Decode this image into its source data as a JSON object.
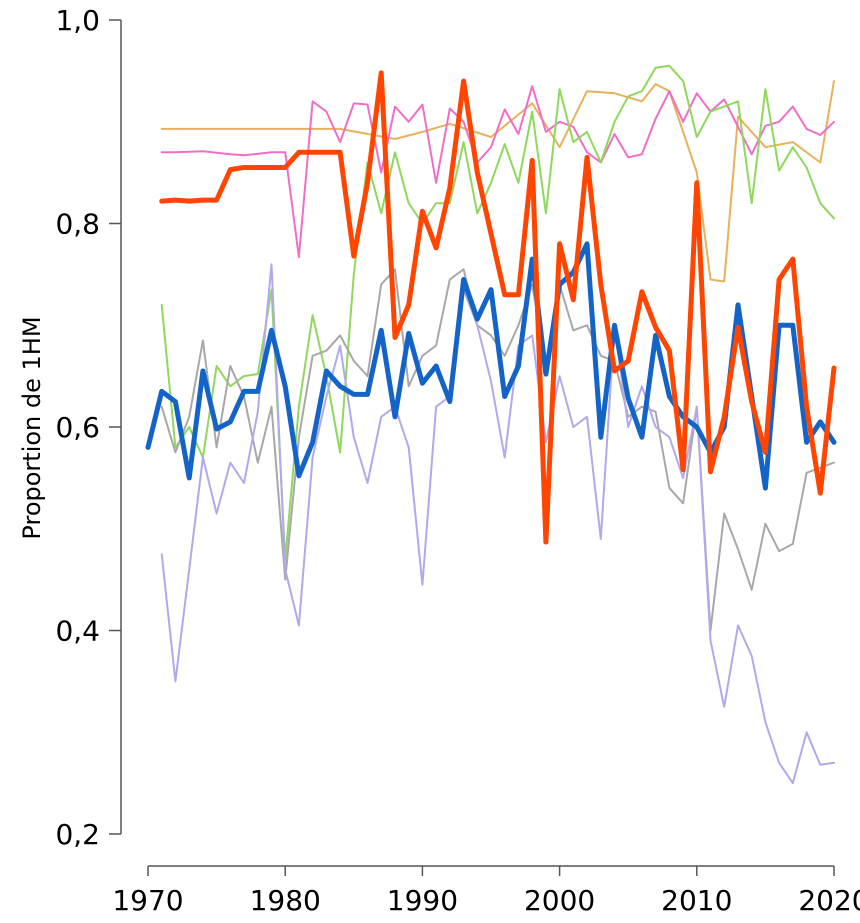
{
  "chart_data": {
    "type": "line",
    "title": "",
    "xlabel": "",
    "ylabel": "Proportion de 1HM",
    "xlim": [
      1970,
      2020
    ],
    "ylim": [
      0.2,
      1.0
    ],
    "x_ticks": [
      "1970",
      "1980",
      "1990",
      "2000",
      "2010",
      "2020"
    ],
    "y_ticks": [
      "0,2",
      "0,4",
      "0,6",
      "0,8",
      "1,0"
    ],
    "grid": false,
    "legend": "none",
    "series": [
      {
        "color": "#E8B15C",
        "width": 2,
        "x": [
          1971,
          1984,
          1988,
          1990,
          1992,
          1995,
          1998,
          2000,
          2002,
          2004,
          2006,
          2007,
          2008,
          2010,
          2011,
          2012,
          2013,
          2015,
          2017,
          2019,
          2020
        ],
        "y": [
          0.893,
          0.893,
          0.883,
          0.89,
          0.898,
          0.885,
          0.918,
          0.875,
          0.93,
          0.928,
          0.92,
          0.937,
          0.93,
          0.85,
          0.745,
          0.743,
          0.905,
          0.875,
          0.88,
          0.86,
          0.94
        ]
      },
      {
        "color": "#F06EC8",
        "width": 2,
        "x": [
          1971,
          1972,
          1974,
          1976,
          1977,
          1979,
          1980,
          1981,
          1982,
          1983,
          1984,
          1985,
          1986,
          1987,
          1988,
          1989,
          1990,
          1991,
          1992,
          1993,
          1994,
          1995,
          1996,
          1997,
          1998,
          1999,
          2000,
          2001,
          2002,
          2003,
          2004,
          2005,
          2006,
          2007,
          2008,
          2009,
          2010,
          2011,
          2012,
          2013,
          2014,
          2015,
          2016,
          2017,
          2018,
          2019,
          2020
        ],
        "y": [
          0.87,
          0.87,
          0.871,
          0.868,
          0.867,
          0.87,
          0.87,
          0.767,
          0.92,
          0.91,
          0.88,
          0.918,
          0.917,
          0.85,
          0.915,
          0.9,
          0.917,
          0.84,
          0.913,
          0.9,
          0.86,
          0.875,
          0.912,
          0.888,
          0.935,
          0.89,
          0.9,
          0.895,
          0.87,
          0.86,
          0.888,
          0.865,
          0.868,
          0.903,
          0.93,
          0.9,
          0.928,
          0.91,
          0.922,
          0.895,
          0.868,
          0.896,
          0.9,
          0.915,
          0.893,
          0.887,
          0.9
        ]
      },
      {
        "color": "#8ED85C",
        "width": 2,
        "x": [
          1971,
          1972,
          1973,
          1974,
          1975,
          1976,
          1977,
          1978,
          1979,
          1980,
          1981,
          1982,
          1983,
          1984,
          1985,
          1986,
          1987,
          1988,
          1989,
          1990,
          1991,
          1992,
          1993,
          1994,
          1995,
          1996,
          1997,
          1998,
          1999,
          2000,
          2001,
          2002,
          2003,
          2004,
          2005,
          2006,
          2007,
          2008,
          2009,
          2010,
          2011,
          2012,
          2013,
          2014,
          2015,
          2016,
          2017,
          2018,
          2019,
          2020
        ],
        "y": [
          0.72,
          0.58,
          0.6,
          0.57,
          0.66,
          0.64,
          0.65,
          0.652,
          0.735,
          0.47,
          0.62,
          0.71,
          0.65,
          0.575,
          0.75,
          0.86,
          0.81,
          0.87,
          0.82,
          0.8,
          0.82,
          0.82,
          0.88,
          0.81,
          0.84,
          0.878,
          0.84,
          0.91,
          0.81,
          0.932,
          0.88,
          0.89,
          0.86,
          0.9,
          0.925,
          0.93,
          0.953,
          0.955,
          0.94,
          0.885,
          0.91,
          0.915,
          0.92,
          0.82,
          0.932,
          0.852,
          0.875,
          0.855,
          0.82,
          0.805
        ]
      },
      {
        "color": "#A8A8A8",
        "width": 2,
        "x": [
          1971,
          1972,
          1973,
          1974,
          1975,
          1976,
          1977,
          1978,
          1979,
          1980,
          1981,
          1982,
          1983,
          1984,
          1985,
          1986,
          1987,
          1988,
          1989,
          1990,
          1991,
          1992,
          1993,
          1994,
          1995,
          1996,
          1997,
          1998,
          1999,
          2000,
          2001,
          2002,
          2003,
          2004,
          2005,
          2006,
          2007,
          2008,
          2009,
          2010,
          2011,
          2012,
          2013,
          2014,
          2015,
          2016,
          2017,
          2018,
          2019,
          2020
        ],
        "y": [
          0.62,
          0.575,
          0.61,
          0.685,
          0.58,
          0.66,
          0.63,
          0.565,
          0.62,
          0.45,
          0.59,
          0.67,
          0.675,
          0.69,
          0.665,
          0.65,
          0.74,
          0.755,
          0.64,
          0.67,
          0.68,
          0.745,
          0.755,
          0.7,
          0.69,
          0.67,
          0.7,
          0.74,
          0.66,
          0.74,
          0.695,
          0.7,
          0.67,
          0.665,
          0.61,
          0.62,
          0.615,
          0.54,
          0.525,
          0.62,
          0.4,
          0.515,
          0.48,
          0.44,
          0.505,
          0.478,
          0.485,
          0.555,
          0.56,
          0.565
        ]
      },
      {
        "color": "#B2A8EC",
        "width": 2,
        "x": [
          1971,
          1972,
          1973,
          1974,
          1975,
          1976,
          1977,
          1978,
          1979,
          1980,
          1981,
          1982,
          1983,
          1984,
          1985,
          1986,
          1987,
          1988,
          1989,
          1990,
          1991,
          1992,
          1993,
          1994,
          1995,
          1996,
          1997,
          1998,
          1999,
          2000,
          2001,
          2002,
          2003,
          2004,
          2005,
          2006,
          2007,
          2008,
          2009,
          2010,
          2011,
          2012,
          2013,
          2014,
          2015,
          2016,
          2017,
          2018,
          2019,
          2020
        ],
        "y": [
          0.475,
          0.35,
          0.46,
          0.57,
          0.515,
          0.565,
          0.545,
          0.615,
          0.76,
          0.46,
          0.405,
          0.57,
          0.63,
          0.68,
          0.59,
          0.545,
          0.61,
          0.62,
          0.58,
          0.445,
          0.62,
          0.63,
          0.735,
          0.7,
          0.645,
          0.57,
          0.68,
          0.69,
          0.585,
          0.65,
          0.6,
          0.61,
          0.49,
          0.7,
          0.6,
          0.64,
          0.6,
          0.59,
          0.55,
          0.62,
          0.39,
          0.325,
          0.405,
          0.375,
          0.31,
          0.27,
          0.25,
          0.3,
          0.268,
          0.27
        ]
      },
      {
        "color": "#1464C8",
        "width": 5,
        "x": [
          1970,
          1971,
          1972,
          1973,
          1974,
          1975,
          1976,
          1977,
          1978,
          1979,
          1980,
          1981,
          1982,
          1983,
          1984,
          1985,
          1986,
          1987,
          1988,
          1989,
          1990,
          1991,
          1992,
          1993,
          1994,
          1995,
          1996,
          1997,
          1998,
          1999,
          2000,
          2001,
          2002,
          2003,
          2004,
          2005,
          2006,
          2007,
          2008,
          2009,
          2010,
          2011,
          2012,
          2013,
          2014,
          2015,
          2016,
          2017,
          2018,
          2019,
          2020
        ],
        "y": [
          0.58,
          0.635,
          0.625,
          0.55,
          0.655,
          0.598,
          0.605,
          0.635,
          0.635,
          0.695,
          0.64,
          0.552,
          0.585,
          0.655,
          0.64,
          0.632,
          0.632,
          0.695,
          0.61,
          0.692,
          0.643,
          0.66,
          0.625,
          0.745,
          0.706,
          0.735,
          0.63,
          0.66,
          0.765,
          0.652,
          0.74,
          0.752,
          0.78,
          0.59,
          0.7,
          0.628,
          0.59,
          0.69,
          0.63,
          0.61,
          0.6,
          0.575,
          0.6,
          0.72,
          0.63,
          0.54,
          0.7,
          0.7,
          0.585,
          0.605,
          0.585
        ]
      },
      {
        "color": "#FF4500",
        "width": 5,
        "x": [
          1971,
          1972,
          1973,
          1974,
          1975,
          1976,
          1977,
          1978,
          1979,
          1980,
          1981,
          1982,
          1983,
          1984,
          1985,
          1986,
          1987,
          1988,
          1989,
          1990,
          1991,
          1992,
          1993,
          1994,
          1995,
          1996,
          1997,
          1998,
          1999,
          2000,
          2001,
          2002,
          2003,
          2004,
          2005,
          2006,
          2007,
          2008,
          2009,
          2010,
          2011,
          2012,
          2013,
          2014,
          2015,
          2016,
          2017,
          2018,
          2019,
          2020
        ],
        "y": [
          0.822,
          0.823,
          0.822,
          0.823,
          0.823,
          0.853,
          0.855,
          0.855,
          0.855,
          0.855,
          0.87,
          0.87,
          0.87,
          0.87,
          0.768,
          0.84,
          0.948,
          0.688,
          0.72,
          0.812,
          0.776,
          0.835,
          0.94,
          0.85,
          0.79,
          0.73,
          0.73,
          0.862,
          0.487,
          0.78,
          0.725,
          0.865,
          0.74,
          0.655,
          0.665,
          0.733,
          0.698,
          0.675,
          0.558,
          0.84,
          0.556,
          0.61,
          0.698,
          0.625,
          0.575,
          0.745,
          0.765,
          0.62,
          0.535,
          0.658
        ]
      }
    ]
  }
}
